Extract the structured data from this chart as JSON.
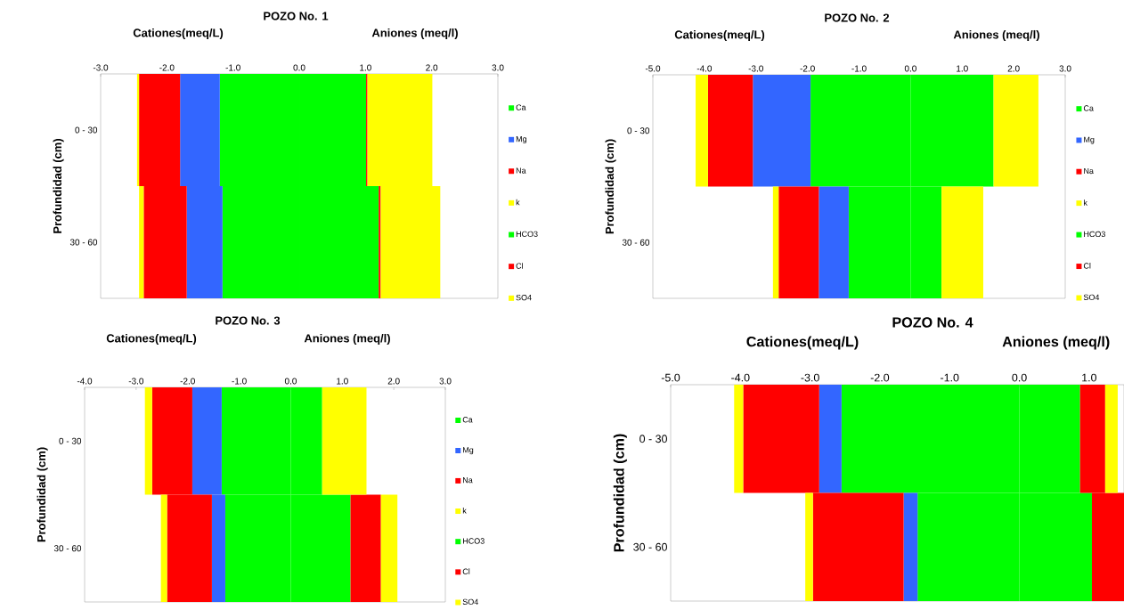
{
  "chart_data": [
    {
      "type": "bar",
      "orientation": "horizontal",
      "stacked": true,
      "title": "POZO No. 1",
      "ylabel": "Profundidad (cm)",
      "annotations": [
        "Cationes(meq/L)",
        "Aniones (meq/l)"
      ],
      "categories": [
        "0 - 30",
        "30 - 60"
      ],
      "xlim": [
        -3,
        3
      ],
      "xticks": [
        {
          "value": -3,
          "label": "-3.0"
        },
        {
          "value": -2,
          "label": "-2.0"
        },
        {
          "value": -1,
          "label": "-1.0"
        },
        {
          "value": 0,
          "label": "0.0"
        },
        {
          "value": 1,
          "label": "1.0"
        },
        {
          "value": 2,
          "label": "2.0"
        },
        {
          "value": 3,
          "label": "3.0"
        }
      ],
      "legend": "right",
      "series": [
        {
          "name": "Ca",
          "color": "#00ff00",
          "values": [
            -1.2,
            -1.16
          ]
        },
        {
          "name": "Mg",
          "color": "#3366ff",
          "values": [
            -0.6,
            -0.54
          ]
        },
        {
          "name": "Na",
          "color": "#ff0000",
          "values": [
            -0.62,
            -0.65
          ]
        },
        {
          "name": "k",
          "color": "#ffff00",
          "values": [
            -0.03,
            -0.07
          ]
        },
        {
          "name": "HCO3",
          "color": "#00ff00",
          "values": [
            1.01,
            1.2
          ]
        },
        {
          "name": "Cl",
          "color": "#ff0000",
          "values": [
            0.02,
            0.03
          ]
        },
        {
          "name": "SO4",
          "color": "#ffff00",
          "values": [
            0.98,
            0.9
          ]
        }
      ]
    },
    {
      "type": "bar",
      "orientation": "horizontal",
      "stacked": true,
      "title": "POZO No. 2",
      "ylabel": "Profundidad (cm)",
      "annotations": [
        "Cationes(meq/L)",
        "Aniones (meq/l)"
      ],
      "categories": [
        "0 - 30",
        "30 - 60"
      ],
      "xlim": [
        -5,
        3
      ],
      "xticks": [
        {
          "value": -5,
          "label": "-5.0"
        },
        {
          "value": -4,
          "label": "-4.0"
        },
        {
          "value": -3,
          "label": "-3.0"
        },
        {
          "value": -2,
          "label": "-2.0"
        },
        {
          "value": -1,
          "label": "-1.0"
        },
        {
          "value": 0,
          "label": "0.0"
        },
        {
          "value": 1,
          "label": "1.0"
        },
        {
          "value": 2,
          "label": "2.0"
        },
        {
          "value": 3,
          "label": "3.0"
        }
      ],
      "legend": "right",
      "series": [
        {
          "name": "Ca",
          "color": "#00ff00",
          "values": [
            -1.94,
            -1.2
          ]
        },
        {
          "name": "Mg",
          "color": "#3366ff",
          "values": [
            -1.12,
            -0.58
          ]
        },
        {
          "name": "Na",
          "color": "#ff0000",
          "values": [
            -0.87,
            -0.78
          ]
        },
        {
          "name": "k",
          "color": "#ffff00",
          "values": [
            -0.24,
            -0.11
          ]
        },
        {
          "name": "HCO3",
          "color": "#00ff00",
          "values": [
            1.61,
            0.6
          ]
        },
        {
          "name": "Cl",
          "color": "#ff0000",
          "values": [
            0,
            0
          ]
        },
        {
          "name": "SO4",
          "color": "#ffff00",
          "values": [
            0.87,
            0.81
          ]
        }
      ]
    },
    {
      "type": "bar",
      "orientation": "horizontal",
      "stacked": true,
      "title": "POZO No. 3",
      "ylabel": "Profundidad (cm)",
      "annotations": [
        "Cationes(meq/L)",
        "Aniones (meq/l)"
      ],
      "categories": [
        "0 - 30",
        "30 - 60"
      ],
      "xlim": [
        -4,
        3
      ],
      "xticks": [
        {
          "value": -4,
          "label": "-4.0"
        },
        {
          "value": -3,
          "label": "-3.0"
        },
        {
          "value": -2,
          "label": "-2.0"
        },
        {
          "value": -1,
          "label": "-1.0"
        },
        {
          "value": 0,
          "label": "0.0"
        },
        {
          "value": 1,
          "label": "1.0"
        },
        {
          "value": 2,
          "label": "2.0"
        },
        {
          "value": 3,
          "label": "3.0"
        }
      ],
      "legend": "right",
      "series": [
        {
          "name": "Ca",
          "color": "#00ff00",
          "values": [
            -1.34,
            -1.27
          ]
        },
        {
          "name": "Mg",
          "color": "#3366ff",
          "values": [
            -0.57,
            -0.26
          ]
        },
        {
          "name": "Na",
          "color": "#ff0000",
          "values": [
            -0.78,
            -0.87
          ]
        },
        {
          "name": "k",
          "color": "#ffff00",
          "values": [
            -0.14,
            -0.12
          ]
        },
        {
          "name": "HCO3",
          "color": "#00ff00",
          "values": [
            0.61,
            1.16
          ]
        },
        {
          "name": "Cl",
          "color": "#ff0000",
          "values": [
            0,
            0.59
          ]
        },
        {
          "name": "SO4",
          "color": "#ffff00",
          "values": [
            0.86,
            0.32
          ]
        }
      ]
    },
    {
      "type": "bar",
      "orientation": "horizontal",
      "stacked": true,
      "title": "POZO No. 4",
      "ylabel": "Profundidad (cm)",
      "annotations": [
        "Cationes(meq/L)",
        "Aniones (meq/l)"
      ],
      "categories": [
        "0 - 30",
        "30 - 60"
      ],
      "xlim": [
        -5,
        1.5
      ],
      "xticks": [
        {
          "value": -5,
          "label": "-5.0"
        },
        {
          "value": -4,
          "label": "-4.0"
        },
        {
          "value": -3,
          "label": "-3.0"
        },
        {
          "value": -2,
          "label": "-2.0"
        },
        {
          "value": -1,
          "label": "-1.0"
        },
        {
          "value": 0,
          "label": "0.0"
        },
        {
          "value": 1,
          "label": "1.0"
        }
      ],
      "series": [
        {
          "color": "#00ff00",
          "values": [
            -2.55,
            -1.46
          ]
        },
        {
          "color": "#3366ff",
          "values": [
            -0.32,
            -0.2
          ]
        },
        {
          "color": "#ff0000",
          "values": [
            -1.09,
            -1.3
          ]
        },
        {
          "color": "#ffff00",
          "values": [
            -0.13,
            -0.11
          ]
        },
        {
          "color": "#00ff00",
          "values": [
            0.87,
            1.04
          ]
        },
        {
          "color": "#ff0000",
          "values": [
            0.36,
            0.46
          ]
        },
        {
          "color": "#ffff00",
          "values": [
            0.18,
            null
          ]
        }
      ]
    }
  ]
}
